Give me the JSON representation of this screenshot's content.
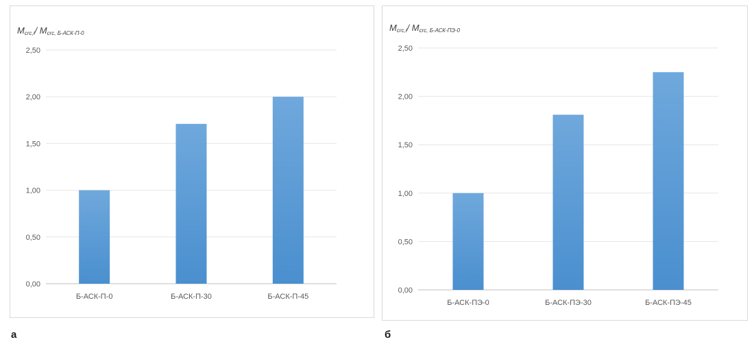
{
  "chart_data": [
    {
      "type": "bar",
      "panel_label": "а",
      "ylabel_main_1": "M",
      "ylabel_sub_1": "crc,i",
      "ylabel_sep": "/ ",
      "ylabel_main_2": "M",
      "ylabel_sub_2": "crc, Б-АСК-П-0",
      "categories": [
        "Б-АСК-П-0",
        "Б-АСК-П-30",
        "Б-АСК-П-45"
      ],
      "values": [
        1.0,
        1.71,
        2.0
      ],
      "yticks": [
        "0,00",
        "0,50",
        "1,00",
        "1,50",
        "2,00",
        "2,50"
      ],
      "ylim": [
        0,
        2.5
      ],
      "grid": true,
      "bar_color_top": "#6fa8dc",
      "bar_color_bottom": "#4a8fcf"
    },
    {
      "type": "bar",
      "panel_label": "б",
      "ylabel_main_1": "M",
      "ylabel_sub_1": "crc,i",
      "ylabel_sep": "/ ",
      "ylabel_main_2": "M",
      "ylabel_sub_2": "crc, Б-АСК-ПЭ-0",
      "categories": [
        "Б-АСК-ПЭ-0",
        "Б-АСК-ПЭ-30",
        "Б-АСК-ПЭ-45"
      ],
      "values": [
        1.0,
        1.81,
        2.25
      ],
      "yticks": [
        "0,00",
        "0,50",
        "1,00",
        "1,50",
        "2,00",
        "2,50"
      ],
      "ylim": [
        0,
        2.5
      ],
      "grid": true,
      "bar_color_top": "#6fa8dc",
      "bar_color_bottom": "#4a8fcf"
    }
  ]
}
